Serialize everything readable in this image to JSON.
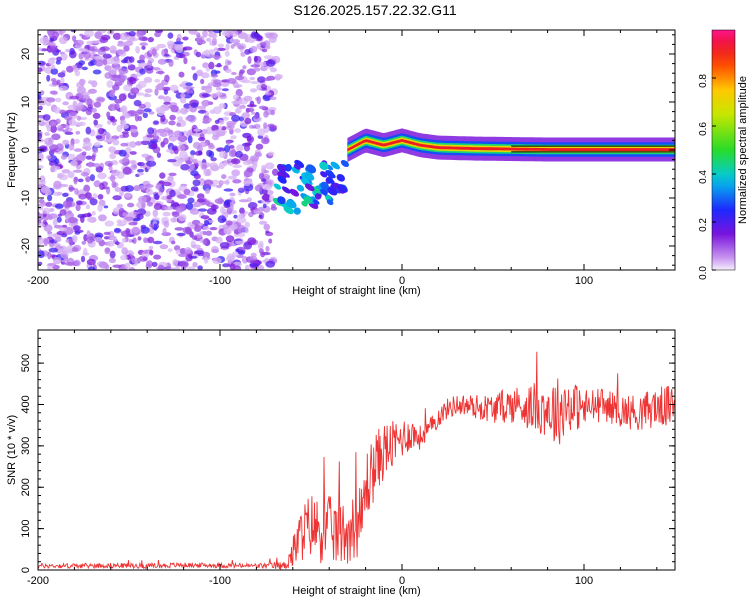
{
  "title": "S126.2025.157.22.32.G11",
  "chart_data": [
    {
      "type": "heatmap",
      "xlabel": "Height of straight line (km)",
      "ylabel": "Frequency (Hz)",
      "xlim": [
        -200,
        150
      ],
      "ylim": [
        -25,
        25
      ],
      "xticks": [
        -200,
        -100,
        0,
        100
      ],
      "yticks": [
        -20,
        -10,
        0,
        10,
        20
      ],
      "colorbar": {
        "label": "Normalized spectral amplitude",
        "range": [
          0,
          1
        ],
        "ticks": [
          0.0,
          0.2,
          0.4,
          0.6,
          0.8
        ]
      },
      "regions": [
        {
          "description_x": [
            -200,
            -70
          ],
          "frequency": [
            -25,
            25
          ],
          "amplitude": "low-scattered"
        },
        {
          "description_x": [
            -70,
            -30
          ],
          "frequency": [
            -13,
            6
          ],
          "amplitude": "medium"
        },
        {
          "description_x": [
            -30,
            150
          ],
          "frequency_center": 0,
          "amplitude": "high"
        }
      ],
      "line_frequency": [
        [
          -30,
          0.0
        ],
        [
          -20,
          2.0
        ],
        [
          -10,
          1.0
        ],
        [
          0,
          2.0
        ],
        [
          10,
          1.0
        ],
        [
          20,
          0.5
        ],
        [
          40,
          0.3
        ],
        [
          60,
          0.2
        ],
        [
          80,
          0.1
        ],
        [
          100,
          0.1
        ],
        [
          150,
          0.1
        ]
      ]
    },
    {
      "type": "line",
      "xlabel": "Height of straight line (km)",
      "ylabel": "SNR (10 * v/v)",
      "xlim": [
        -200,
        150
      ],
      "ylim": [
        0,
        580
      ],
      "xticks": [
        -200,
        -100,
        0,
        100
      ],
      "yticks": [
        0,
        100,
        200,
        300,
        400,
        500
      ],
      "color": "#ee3333",
      "series": [
        {
          "x": [
            -200,
            -180,
            -160,
            -140,
            -120,
            -100,
            -80,
            -65,
            -60,
            -55,
            -50,
            -45,
            -40,
            -35,
            -30,
            -25,
            -22,
            -20,
            -15,
            -10,
            -5,
            0,
            5,
            10,
            15,
            20,
            25,
            30,
            40,
            50,
            60,
            70,
            80,
            85,
            90,
            100,
            110,
            120,
            130,
            140,
            150
          ],
          "y": [
            10,
            10,
            11,
            10,
            12,
            11,
            10,
            10,
            40,
            90,
            110,
            95,
            100,
            85,
            95,
            110,
            120,
            200,
            250,
            290,
            300,
            320,
            330,
            320,
            340,
            370,
            390,
            400,
            395,
            390,
            400,
            395,
            390,
            380,
            400,
            390,
            400,
            385,
            380,
            395,
            395
          ],
          "noise_amplitude": [
            6,
            6,
            6,
            6,
            6,
            6,
            6,
            10,
            40,
            70,
            80,
            80,
            80,
            80,
            80,
            80,
            90,
            90,
            80,
            70,
            60,
            50,
            40,
            30,
            25,
            25,
            25,
            25,
            30,
            35,
            45,
            55,
            70,
            90,
            70,
            50,
            40,
            40,
            45,
            50,
            50
          ]
        }
      ]
    }
  ]
}
